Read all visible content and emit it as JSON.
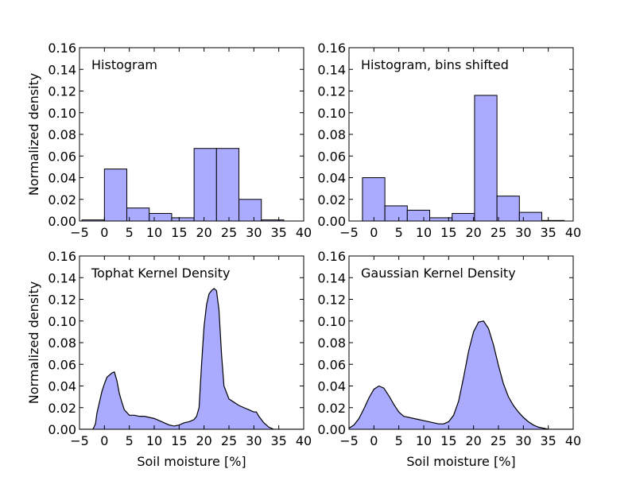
{
  "chart_data": [
    {
      "type": "bar",
      "title": "Histogram",
      "xlabel": "",
      "ylabel": "Normalized density",
      "xlim": [
        -5,
        40
      ],
      "ylim": [
        0,
        0.16
      ],
      "xticks": [
        "−5",
        "0",
        "5",
        "10",
        "15",
        "20",
        "25",
        "30",
        "35",
        "40"
      ],
      "yticks": [
        "0.00",
        "0.02",
        "0.04",
        "0.06",
        "0.08",
        "0.10",
        "0.12",
        "0.14",
        "0.16"
      ],
      "bin_edges": [
        -4.5,
        0,
        4.5,
        9,
        13.5,
        18,
        22.5,
        27,
        31.5,
        36
      ],
      "values": [
        0.001,
        0.048,
        0.012,
        0.007,
        0.003,
        0.067,
        0.067,
        0.02,
        0.001
      ],
      "color": "#aaaaff"
    },
    {
      "type": "bar",
      "title": "Histogram, bins shifted",
      "xlabel": "",
      "ylabel": "",
      "xlim": [
        -5,
        40
      ],
      "ylim": [
        0,
        0.16
      ],
      "xticks": [
        "−5",
        "0",
        "5",
        "10",
        "15",
        "20",
        "25",
        "30",
        "35",
        "40"
      ],
      "yticks": [
        "0.00",
        "0.02",
        "0.04",
        "0.06",
        "0.08",
        "0.10",
        "0.12",
        "0.14",
        "0.16"
      ],
      "bin_edges": [
        -2.3,
        2.2,
        6.7,
        11.2,
        15.7,
        20.2,
        24.7,
        29.2,
        33.7,
        38.2
      ],
      "values": [
        0.04,
        0.014,
        0.01,
        0.003,
        0.007,
        0.116,
        0.023,
        0.008,
        0.0005
      ],
      "color": "#aaaaff"
    },
    {
      "type": "area",
      "title": "Tophat Kernel Density",
      "xlabel": "Soil moisture [%]",
      "ylabel": "Normalized density",
      "xlim": [
        -5,
        40
      ],
      "ylim": [
        0,
        0.16
      ],
      "xticks": [
        "−5",
        "0",
        "5",
        "10",
        "15",
        "20",
        "25",
        "30",
        "35",
        "40"
      ],
      "yticks": [
        "0.00",
        "0.02",
        "0.04",
        "0.06",
        "0.08",
        "0.10",
        "0.12",
        "0.14",
        "0.16"
      ],
      "x": [
        -5,
        -2.3,
        -1.8,
        -1.5,
        -1,
        -0.5,
        0,
        0.5,
        1,
        1.5,
        2,
        2.5,
        3,
        3.5,
        4,
        5,
        6,
        7,
        8,
        9,
        10,
        11,
        12,
        13,
        14,
        15,
        16,
        17,
        18,
        18.5,
        19,
        19.5,
        20,
        20.5,
        21,
        21.5,
        22,
        22.5,
        23,
        23.5,
        24,
        25,
        26,
        27,
        28,
        29,
        30,
        30.5,
        31,
        32,
        33,
        34,
        40
      ],
      "y": [
        0,
        0,
        0.005,
        0.015,
        0.025,
        0.035,
        0.042,
        0.048,
        0.05,
        0.052,
        0.053,
        0.045,
        0.033,
        0.025,
        0.018,
        0.013,
        0.013,
        0.012,
        0.012,
        0.011,
        0.01,
        0.008,
        0.006,
        0.004,
        0.003,
        0.004,
        0.006,
        0.007,
        0.009,
        0.012,
        0.02,
        0.06,
        0.095,
        0.115,
        0.125,
        0.128,
        0.13,
        0.128,
        0.11,
        0.07,
        0.04,
        0.028,
        0.025,
        0.022,
        0.02,
        0.018,
        0.016,
        0.016,
        0.012,
        0.006,
        0.002,
        0.0,
        0
      ],
      "color": "#aaaaff"
    },
    {
      "type": "area",
      "title": "Gaussian Kernel Density",
      "xlabel": "Soil moisture [%]",
      "ylabel": "",
      "xlim": [
        -5,
        40
      ],
      "ylim": [
        0,
        0.16
      ],
      "xticks": [
        "−5",
        "0",
        "5",
        "10",
        "15",
        "20",
        "25",
        "30",
        "35",
        "40"
      ],
      "yticks": [
        "0.00",
        "0.02",
        "0.04",
        "0.06",
        "0.08",
        "0.10",
        "0.12",
        "0.14",
        "0.16"
      ],
      "x": [
        -5,
        -4,
        -3,
        -2,
        -1,
        0,
        1,
        2,
        3,
        4,
        5,
        6,
        7,
        8,
        9,
        10,
        11,
        12,
        13,
        14,
        15,
        16,
        17,
        18,
        19,
        20,
        21,
        22,
        23,
        24,
        25,
        26,
        27,
        28,
        29,
        30,
        31,
        32,
        33,
        34,
        35,
        40
      ],
      "y": [
        0.001,
        0.004,
        0.01,
        0.019,
        0.029,
        0.037,
        0.04,
        0.038,
        0.031,
        0.023,
        0.016,
        0.012,
        0.011,
        0.01,
        0.009,
        0.008,
        0.007,
        0.006,
        0.005,
        0.005,
        0.007,
        0.013,
        0.026,
        0.048,
        0.072,
        0.09,
        0.099,
        0.1,
        0.093,
        0.078,
        0.059,
        0.042,
        0.03,
        0.022,
        0.016,
        0.011,
        0.007,
        0.004,
        0.002,
        0.001,
        0.0,
        0.0
      ],
      "color": "#aaaaff"
    }
  ]
}
